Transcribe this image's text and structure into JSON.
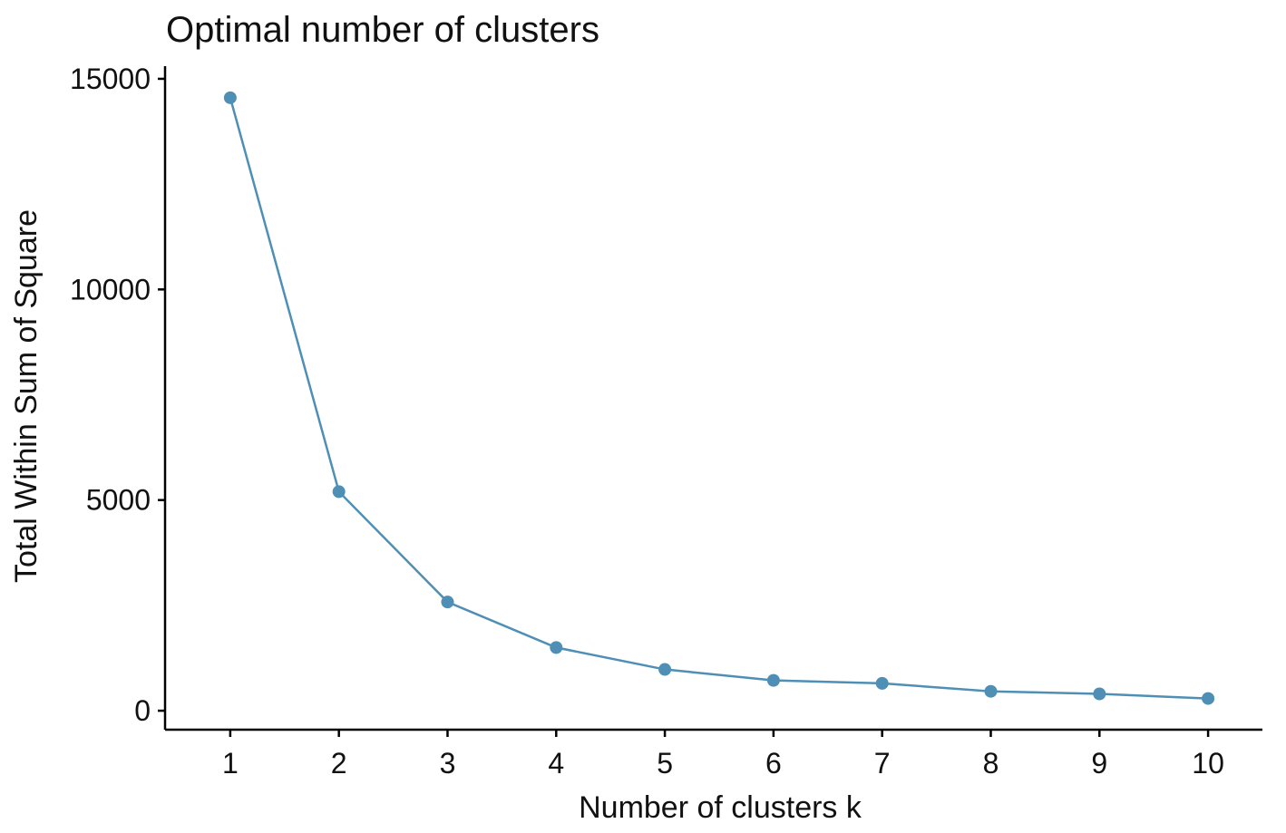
{
  "chart_data": {
    "type": "line",
    "title": "Optimal number of clusters",
    "xlabel": "Number of clusters k",
    "ylabel": "Total Within Sum of Square",
    "x": [
      1,
      2,
      3,
      4,
      5,
      6,
      7,
      8,
      9,
      10
    ],
    "x_tick_labels": [
      "1",
      "2",
      "3",
      "4",
      "5",
      "6",
      "7",
      "8",
      "9",
      "10"
    ],
    "y_ticks": [
      0,
      5000,
      10000,
      15000
    ],
    "y_tick_labels": [
      "0",
      "5000",
      "10000",
      "15000"
    ],
    "xlim": [
      0.4,
      10.5
    ],
    "ylim": [
      -450,
      15300
    ],
    "grid": false,
    "legend": "none",
    "series": [
      {
        "color": "#4f8fb5",
        "values": [
          14550,
          5200,
          2580,
          1500,
          980,
          720,
          650,
          460,
          400,
          290
        ]
      }
    ]
  }
}
